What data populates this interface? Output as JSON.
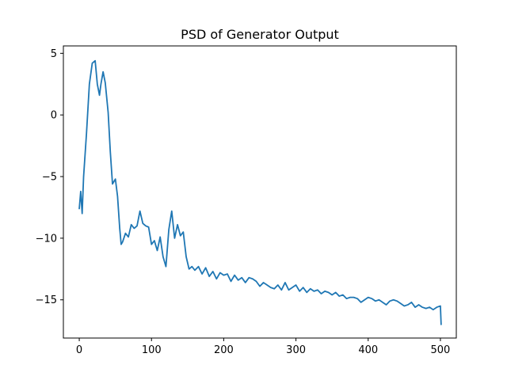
{
  "chart_data": {
    "type": "line",
    "title": "PSD of Generator Output",
    "xlabel": "",
    "ylabel": "",
    "xlim": [
      -22,
      522
    ],
    "ylim": [
      -18.1,
      5.6
    ],
    "x_ticks": [
      0,
      100,
      200,
      300,
      400,
      500
    ],
    "y_ticks": [
      5,
      0,
      -5,
      -10,
      -15
    ],
    "y_tick_labels": [
      "5",
      "0",
      "−5",
      "−10",
      "−15"
    ],
    "grid": false,
    "line_color": "#1f77b4",
    "series": [
      {
        "x": [
          0,
          2,
          4,
          6,
          10,
          14,
          18,
          22,
          25,
          28,
          30,
          33,
          36,
          40,
          43,
          46,
          50,
          53,
          56,
          58,
          60,
          64,
          68,
          72,
          76,
          80,
          84,
          88,
          92,
          96,
          100,
          104,
          108,
          112,
          116,
          120,
          124,
          128,
          132,
          136,
          140,
          144,
          148,
          152,
          156,
          160,
          165,
          170,
          175,
          180,
          185,
          190,
          195,
          200,
          205,
          210,
          215,
          220,
          225,
          230,
          235,
          240,
          245,
          250,
          255,
          260,
          265,
          270,
          275,
          280,
          285,
          290,
          295,
          300,
          305,
          310,
          315,
          320,
          325,
          330,
          335,
          340,
          345,
          350,
          355,
          360,
          365,
          370,
          375,
          380,
          385,
          390,
          395,
          400,
          405,
          410,
          415,
          420,
          425,
          430,
          435,
          440,
          445,
          450,
          455,
          460,
          465,
          470,
          475,
          480,
          485,
          490,
          495,
          500,
          501
        ],
        "y": [
          -7.6,
          -6.2,
          -8.0,
          -5.0,
          -1.5,
          2.5,
          4.2,
          4.4,
          2.5,
          1.6,
          2.5,
          3.5,
          2.6,
          0.2,
          -3.0,
          -5.6,
          -5.2,
          -6.6,
          -9.2,
          -10.5,
          -10.3,
          -9.6,
          -9.9,
          -8.9,
          -9.2,
          -9.0,
          -7.8,
          -8.8,
          -9.0,
          -9.1,
          -10.5,
          -10.2,
          -11.0,
          -9.9,
          -11.5,
          -12.3,
          -9.3,
          -7.8,
          -10.0,
          -8.9,
          -9.8,
          -9.5,
          -11.5,
          -12.5,
          -12.3,
          -12.6,
          -12.3,
          -12.9,
          -12.4,
          -13.1,
          -12.7,
          -13.3,
          -12.8,
          -13.0,
          -12.9,
          -13.5,
          -13.0,
          -13.4,
          -13.2,
          -13.6,
          -13.2,
          -13.3,
          -13.5,
          -13.9,
          -13.6,
          -13.8,
          -14.0,
          -14.1,
          -13.8,
          -14.2,
          -13.6,
          -14.2,
          -14.0,
          -13.8,
          -14.3,
          -14.0,
          -14.4,
          -14.1,
          -14.3,
          -14.2,
          -14.5,
          -14.3,
          -14.4,
          -14.6,
          -14.4,
          -14.7,
          -14.6,
          -14.9,
          -14.8,
          -14.8,
          -14.9,
          -15.2,
          -15.0,
          -14.8,
          -14.9,
          -15.1,
          -15.0,
          -15.2,
          -15.4,
          -15.1,
          -15.0,
          -15.1,
          -15.3,
          -15.5,
          -15.4,
          -15.2,
          -15.6,
          -15.4,
          -15.6,
          -15.7,
          -15.6,
          -15.8,
          -15.6,
          -15.5,
          -17.0
        ]
      }
    ]
  }
}
